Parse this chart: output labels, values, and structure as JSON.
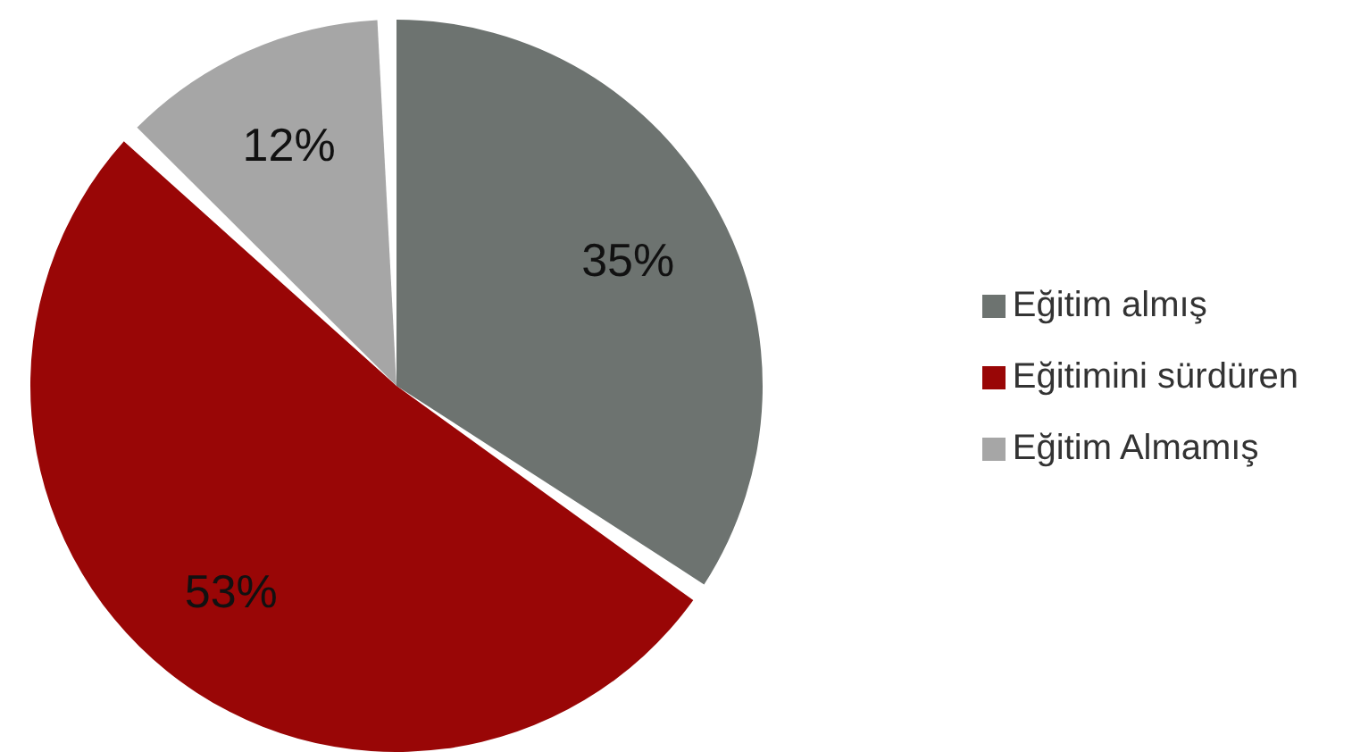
{
  "chart_data": {
    "type": "pie",
    "categories": [
      "Eğitim almış",
      "Eğitimini sürdüren",
      "Eğitim Almamış"
    ],
    "values": [
      35,
      53,
      12
    ],
    "colors": [
      "#6d7370",
      "#990606",
      "#a6a6a6"
    ],
    "value_labels": [
      "35%",
      "53%",
      "12%"
    ],
    "legend": "right"
  }
}
